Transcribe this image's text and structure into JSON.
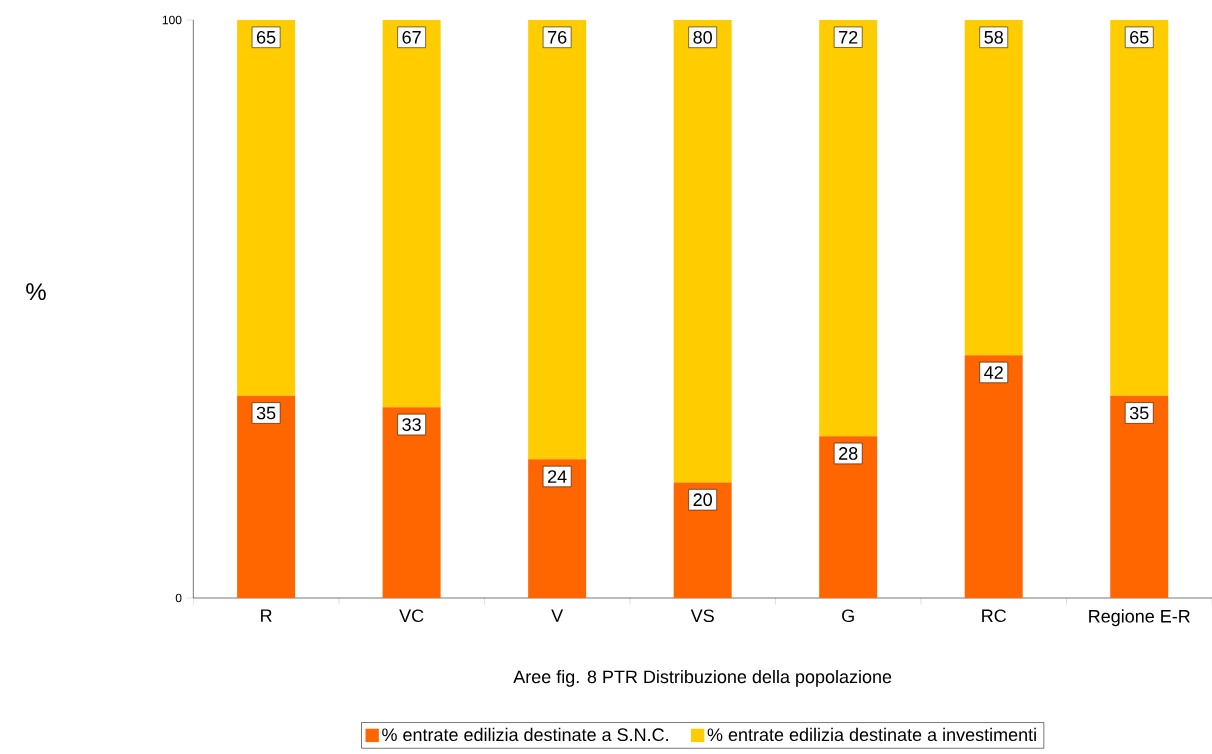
{
  "chart_data": {
    "type": "bar",
    "stacked": true,
    "categories": [
      "R",
      "VC",
      "V",
      "VS",
      "G",
      "RC",
      "Regione E-R"
    ],
    "series": [
      {
        "name": "% entrate edilizia destinate a S.N.C.",
        "color": "#ff6600",
        "values": [
          35,
          33,
          24,
          20,
          28,
          42,
          35
        ]
      },
      {
        "name": "% entrate edilizia destinate a investimenti",
        "color": "#ffcc00",
        "values": [
          65,
          67,
          76,
          80,
          72,
          58,
          65
        ]
      }
    ],
    "ylim": [
      0,
      100
    ],
    "yticks": [
      0,
      100
    ],
    "ylabel": "%",
    "xlabel": "Aree fig. 8 PTR Distribuzione della popolazione",
    "data_labels": true,
    "legend": "bottom",
    "grid": false
  }
}
